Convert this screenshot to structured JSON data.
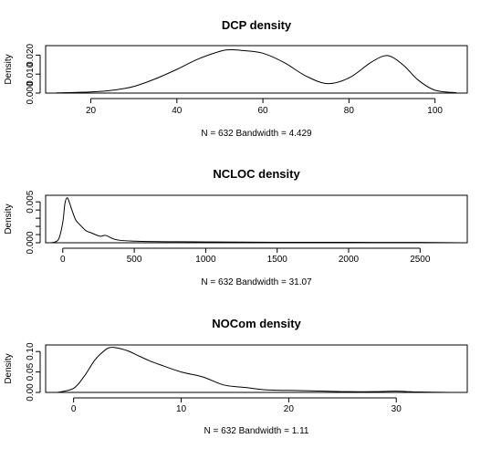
{
  "chart_data": [
    {
      "type": "line",
      "title": "DCP density",
      "xlabel": "N = 632   Bandwidth = 4.429",
      "ylabel": "Density",
      "xlim": [
        9.5,
        107.5
      ],
      "ylim": [
        0.0,
        0.025
      ],
      "xticks": [
        20,
        40,
        60,
        80,
        100
      ],
      "yticks": [
        0.0,
        0.01,
        0.02
      ],
      "ytick_labels": [
        "0.000",
        "0.010",
        "0.020"
      ],
      "grid": false,
      "series": [
        {
          "x": [
            12,
            20,
            25,
            30,
            35,
            40,
            45,
            50,
            52,
            55,
            60,
            65,
            70,
            75,
            80,
            85,
            88,
            90,
            93,
            96,
            100,
            105
          ],
          "y": [
            0.0001,
            0.0006,
            0.0015,
            0.0035,
            0.0075,
            0.0125,
            0.018,
            0.022,
            0.0228,
            0.0225,
            0.021,
            0.016,
            0.009,
            0.005,
            0.008,
            0.016,
            0.0195,
            0.019,
            0.014,
            0.007,
            0.0015,
            0.0002
          ]
        }
      ]
    },
    {
      "type": "line",
      "title": "NCLOC density",
      "xlabel": "N = 632   Bandwidth = 31.07",
      "ylabel": "Density",
      "xlim": [
        -120,
        2830
      ],
      "ylim": [
        0.0,
        0.0058
      ],
      "xticks": [
        0,
        500,
        1000,
        1500,
        2000,
        2500
      ],
      "yticks": [
        0.0,
        0.001,
        0.002,
        0.003,
        0.004,
        0.005
      ],
      "ytick_labels": [
        "0.000",
        "",
        "",
        "",
        "",
        "0.005"
      ],
      "grid": false,
      "series": [
        {
          "x": [
            -80,
            -30,
            0,
            15,
            30,
            45,
            60,
            90,
            120,
            160,
            200,
            260,
            300,
            350,
            400,
            500,
            600,
            800,
            1000,
            1200,
            1500,
            2000,
            2500,
            2800
          ],
          "y": [
            0.0,
            0.0004,
            0.0025,
            0.0048,
            0.0055,
            0.005,
            0.0042,
            0.0028,
            0.0022,
            0.0015,
            0.0012,
            0.0008,
            0.0009,
            0.0005,
            0.0003,
            0.0002,
            0.00015,
            0.00012,
            0.0001,
            8e-05,
            6e-05,
            5e-05,
            4e-05,
            0.0
          ]
        }
      ]
    },
    {
      "type": "line",
      "title": "NOCom density",
      "xlabel": "N = 632   Bandwidth = 1.11",
      "ylabel": "Density",
      "xlim": [
        -2.6,
        36.6
      ],
      "ylim": [
        0.0,
        0.116
      ],
      "xticks": [
        0,
        10,
        20,
        30
      ],
      "yticks": [
        0.0,
        0.05,
        0.1
      ],
      "ytick_labels": [
        "0.00",
        "0.05",
        "0.10"
      ],
      "grid": false,
      "series": [
        {
          "x": [
            -1.5,
            0,
            1,
            2,
            3,
            3.5,
            4,
            5,
            6,
            7,
            8,
            10,
            12,
            14,
            16,
            18,
            20,
            22,
            25,
            28,
            30,
            32,
            35
          ],
          "y": [
            0.0,
            0.01,
            0.04,
            0.08,
            0.105,
            0.11,
            0.109,
            0.102,
            0.09,
            0.078,
            0.068,
            0.05,
            0.038,
            0.018,
            0.012,
            0.006,
            0.005,
            0.004,
            0.002,
            0.002,
            0.003,
            0.001,
            0.0
          ]
        }
      ]
    }
  ]
}
